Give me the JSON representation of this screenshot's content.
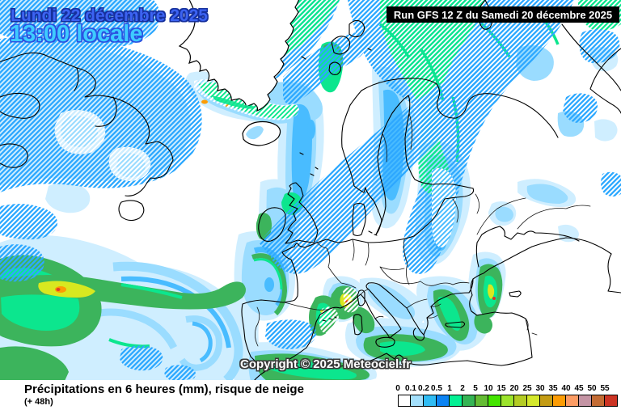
{
  "header": {
    "date_line": "Lundi 22 décembre 2025",
    "time_line": "13:00 locale",
    "run_info": "Run GFS 12 Z du Samedi 20 décembre 2025"
  },
  "map": {
    "copyright": "Copyright © 2025 Meteociel.fr",
    "region": "Europe / Atlantique Nord"
  },
  "footer": {
    "caption": "Précipitations en 6 heures (mm), risque de neige",
    "lead_time": "(+ 48h)"
  },
  "legend": {
    "entries": [
      {
        "label": "0",
        "color": "#ffffff"
      },
      {
        "label": "0.1",
        "color": "#a4e0fc"
      },
      {
        "label": "0.2",
        "color": "#30bcf4"
      },
      {
        "label": "0.5",
        "color": "#0c84f4"
      },
      {
        "label": "1",
        "color": "#04f094"
      },
      {
        "label": "2",
        "color": "#34b454"
      },
      {
        "label": "5",
        "color": "#64bc34"
      },
      {
        "label": "10",
        "color": "#44e400"
      },
      {
        "label": "15",
        "color": "#9ce42c"
      },
      {
        "label": "20",
        "color": "#b4cc24"
      },
      {
        "label": "25",
        "color": "#d4e82c"
      },
      {
        "label": "30",
        "color": "#c49c14"
      },
      {
        "label": "35",
        "color": "#fc9c04"
      },
      {
        "label": "40",
        "color": "#fc9c64"
      },
      {
        "label": "45",
        "color": "#c494a4"
      },
      {
        "label": "50",
        "color": "#c46c34"
      },
      {
        "label": "55",
        "color": "#cc3424"
      }
    ]
  },
  "colors": {
    "date_text": "#3c63f2",
    "time_text": "#3ecbff",
    "run_box_bg": "#000000",
    "run_box_text": "#ffffff",
    "hatch_blue": "#2da8ff",
    "hatch_green": "#0ce68e"
  }
}
